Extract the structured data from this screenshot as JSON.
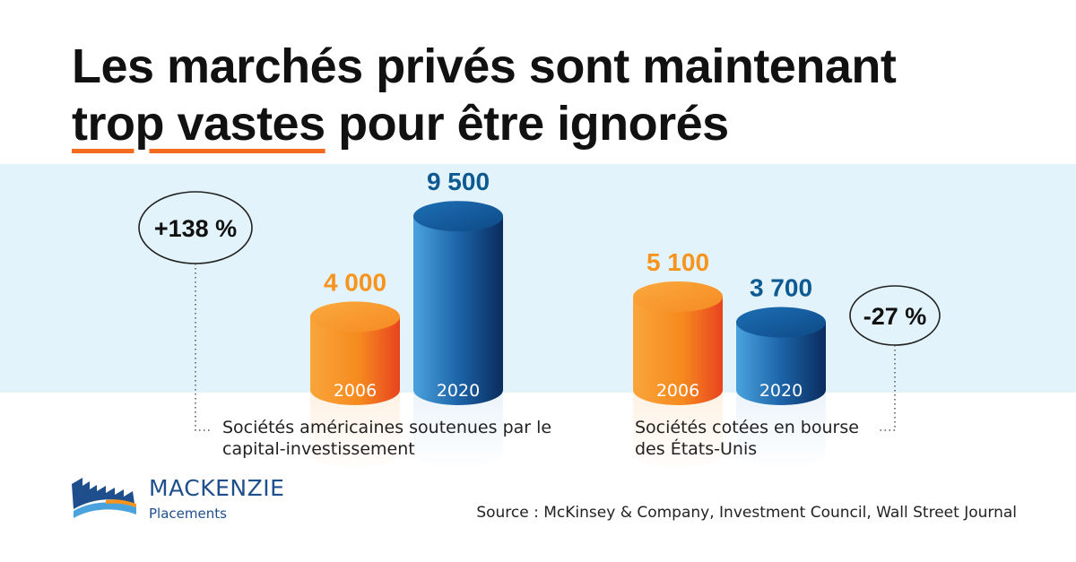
{
  "title": {
    "line1": "Les marchés privés sont maintenant",
    "highlight": "trop vastes",
    "rest": " pour être ignorés"
  },
  "chart_data": [
    {
      "type": "bar",
      "label": "Sociétés américaines soutenues par le capital-investissement",
      "categories": [
        "2006",
        "2020"
      ],
      "values": [
        4000,
        9500
      ],
      "value_labels": [
        "4 000",
        "9 500"
      ],
      "colors": [
        "#f7941d",
        "#1f6fb2"
      ],
      "change": "+138 %"
    },
    {
      "type": "bar",
      "label": "Sociétés cotées en bourse des États-Unis",
      "categories": [
        "2006",
        "2020"
      ],
      "values": [
        5100,
        3700
      ],
      "value_labels": [
        "5 100",
        "3 700"
      ],
      "colors": [
        "#f7941d",
        "#1f6fb2"
      ],
      "change": "-27 %"
    }
  ],
  "labels": {
    "group1_line1": "Sociétés américaines soutenues par le",
    "group1_line2": "capital-investissement",
    "group2_line1": "Sociétés cotées en bourse",
    "group2_line2": "des États-Unis"
  },
  "logo": {
    "name": "MACKENZIE",
    "sub": "Placements"
  },
  "source": "Source : McKinsey & Company, Investment Council, Wall Street Journal",
  "colors": {
    "orange": "#f7941d",
    "orange_value": "#f7941d",
    "blue_value": "#0d5a92",
    "band": "#e3f3fb",
    "underline": "#f26b21"
  }
}
